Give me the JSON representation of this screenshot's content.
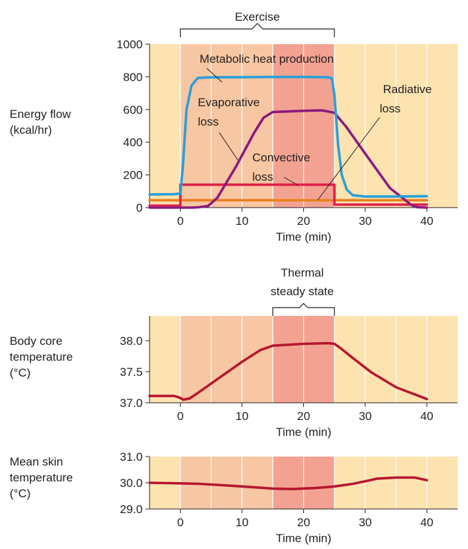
{
  "panels": {
    "energy": {
      "ylabel_lines": [
        "Energy flow",
        "(kcal/hr)"
      ]
    },
    "core": {
      "ylabel_lines": [
        "Body core",
        "temperature",
        "(°C)"
      ]
    },
    "skin": {
      "ylabel_lines": [
        "Mean skin",
        "temperature",
        "(°C)"
      ]
    }
  },
  "colors": {
    "background": "#fde3b0",
    "band_light": "#f7c6a2",
    "band_dark": "#f3a292",
    "grid_line": "#ffffff",
    "metabolic": "#2a9fd8",
    "evaporative": "#8b1a7e",
    "convective": "#e0214b",
    "radiative": "#e8821f",
    "temperature": "#b5172f"
  },
  "chart_data": [
    {
      "type": "line",
      "xlabel": "Time (min)",
      "ylabel": "Energy flow (kcal/hr)",
      "xlim": [
        -5,
        45
      ],
      "ylim": [
        0,
        1000
      ],
      "xticks": [
        0,
        10,
        20,
        30,
        40
      ],
      "yticks": [
        0,
        200,
        400,
        600,
        800,
        1000
      ],
      "bands": [
        {
          "from": 0,
          "to": 15,
          "shade": "light"
        },
        {
          "from": 15,
          "to": 25,
          "shade": "dark"
        }
      ],
      "annotations": [
        {
          "text": "Exercise",
          "x_from": 0,
          "x_to": 25,
          "kind": "bracket"
        }
      ],
      "series": [
        {
          "name": "Metabolic heat production",
          "color": "metabolic",
          "x": [
            -5,
            -1,
            0,
            0.4,
            1,
            1.8,
            2.8,
            5,
            10,
            15,
            20,
            24,
            24.6,
            25,
            25.6,
            26.2,
            27,
            28,
            30,
            35,
            40
          ],
          "y": [
            80,
            82,
            86,
            250,
            600,
            745,
            793,
            797,
            798,
            799,
            799,
            798,
            790,
            690,
            380,
            200,
            110,
            75,
            68,
            68,
            70
          ],
          "label_lines": [
            "Metabolic heat production"
          ]
        },
        {
          "name": "Evaporative loss",
          "color": "evaporative",
          "x": [
            -5,
            0,
            2,
            3,
            4.5,
            6,
            9,
            12,
            13.5,
            15,
            20,
            23,
            25,
            27,
            30,
            34,
            37.5,
            38.5,
            40
          ],
          "y": [
            0,
            0,
            0,
            2,
            10,
            60,
            250,
            460,
            550,
            585,
            592,
            595,
            580,
            490,
            330,
            120,
            15,
            2,
            0
          ],
          "label_lines": [
            "Evaporative",
            "loss"
          ]
        },
        {
          "name": "Convective loss",
          "color": "convective",
          "x": [
            -5,
            0,
            0,
            25,
            25,
            40
          ],
          "y": [
            12,
            12,
            140,
            140,
            18,
            18
          ],
          "label_lines": [
            "Convective",
            "loss"
          ]
        },
        {
          "name": "Radiative loss",
          "color": "radiative",
          "x": [
            -5,
            40
          ],
          "y": [
            45,
            45
          ],
          "label_lines": [
            "Radiative",
            "loss"
          ]
        }
      ]
    },
    {
      "type": "line",
      "xlabel": "Time (min)",
      "ylabel": "Body core temperature (°C)",
      "xlim": [
        -5,
        45
      ],
      "ylim": [
        37.0,
        38.4
      ],
      "xticks": [
        0,
        10,
        20,
        30,
        40
      ],
      "yticks": [
        37.0,
        37.5,
        38.0
      ],
      "ytick_labels": [
        "37.0",
        "37.5",
        "38.0"
      ],
      "bands": [
        {
          "from": 0,
          "to": 15,
          "shade": "light"
        },
        {
          "from": 15,
          "to": 25,
          "shade": "dark"
        }
      ],
      "annotations": [
        {
          "text": "Thermal steady state",
          "lines": [
            "Thermal",
            "steady state"
          ],
          "x_from": 15,
          "x_to": 25,
          "kind": "bracket"
        }
      ],
      "series": [
        {
          "name": "Body core temperature",
          "color": "temperature",
          "x": [
            -5,
            -1,
            -0.3,
            0.5,
            1.5,
            3,
            6,
            10,
            13,
            15,
            20,
            24,
            25,
            26,
            28,
            31,
            35,
            40
          ],
          "y": [
            37.11,
            37.11,
            37.09,
            37.05,
            37.07,
            37.17,
            37.38,
            37.66,
            37.85,
            37.92,
            37.95,
            37.96,
            37.95,
            37.88,
            37.72,
            37.49,
            37.25,
            37.06
          ]
        }
      ]
    },
    {
      "type": "line",
      "xlabel": "Time (min)",
      "ylabel": "Mean skin temperature (°C)",
      "xlim": [
        -5,
        45
      ],
      "ylim": [
        29.0,
        31.0
      ],
      "xticks": [
        0,
        10,
        20,
        30,
        40
      ],
      "yticks": [
        29.0,
        30.0,
        31.0
      ],
      "ytick_labels": [
        "29.0",
        "30.0",
        "31.0"
      ],
      "bands": [
        {
          "from": 0,
          "to": 15,
          "shade": "light"
        },
        {
          "from": 15,
          "to": 25,
          "shade": "dark"
        }
      ],
      "series": [
        {
          "name": "Mean skin temperature",
          "color": "temperature",
          "x": [
            -5,
            0,
            3,
            6,
            10,
            15,
            18,
            22,
            25,
            28,
            30,
            32,
            35,
            38,
            40
          ],
          "y": [
            30.0,
            29.98,
            29.96,
            29.92,
            29.86,
            29.78,
            29.76,
            29.8,
            29.86,
            29.96,
            30.06,
            30.16,
            30.2,
            30.2,
            30.1
          ]
        }
      ]
    }
  ]
}
